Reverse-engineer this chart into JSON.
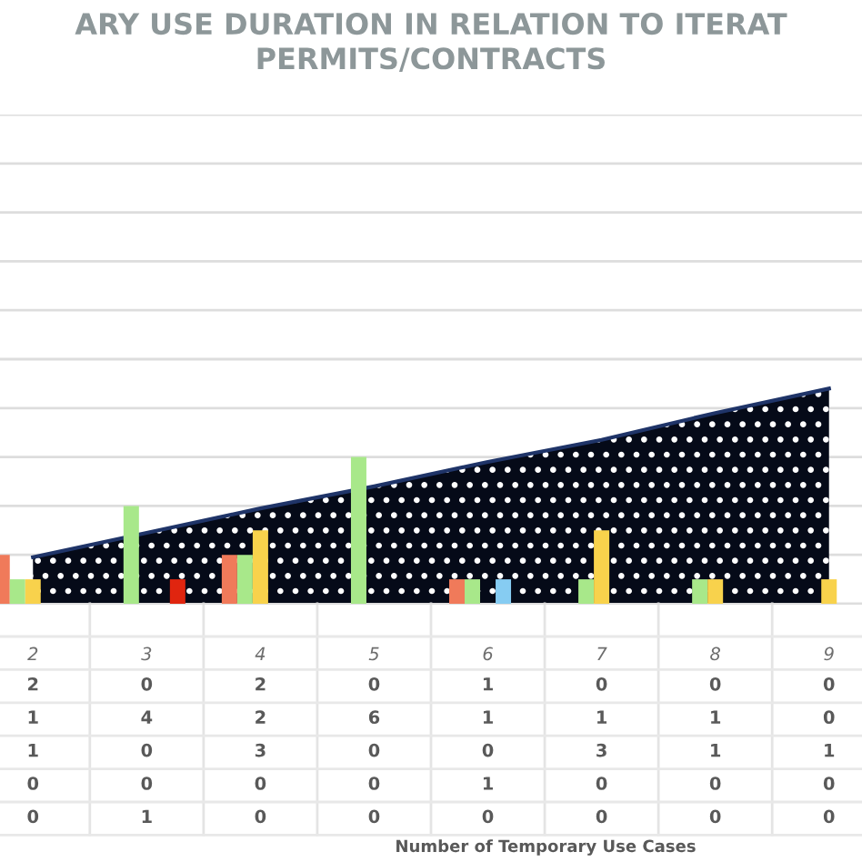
{
  "chart_data": {
    "type": "bar",
    "title": "ARY USE DURATION IN RELATION TO ITERAT\nPERMITS/CONTRACTS",
    "annotations": [
      "Number of Temporary Use Cases"
    ],
    "categories": [
      "2",
      "3",
      "4",
      "5",
      "6",
      "7",
      "8",
      "9"
    ],
    "series": [
      {
        "color": "#f07a5a",
        "values": [
          2,
          0,
          2,
          0,
          1,
          0,
          0,
          0
        ],
        "value_labels": [
          "2",
          "0",
          "2",
          "0",
          "1",
          "0",
          "0",
          "0"
        ]
      },
      {
        "color": "#a8e88a",
        "values": [
          1,
          4,
          2,
          6,
          1,
          1,
          1,
          0
        ],
        "value_labels": [
          "1",
          "4",
          "2",
          "6",
          "1",
          "1",
          "1",
          "0"
        ]
      },
      {
        "color": "#f8d24c",
        "values": [
          1,
          0,
          3,
          0,
          0,
          3,
          1,
          1
        ],
        "value_labels": [
          "1",
          "0",
          "3",
          "0",
          "0",
          "3",
          "1",
          "1"
        ]
      },
      {
        "color": "#86ccf2",
        "values": [
          0,
          0,
          0,
          0,
          1,
          0,
          0,
          0
        ],
        "value_labels": [
          "0",
          "0",
          "0",
          "0",
          "1",
          "0",
          "0",
          "0"
        ]
      },
      {
        "color": "#e0250f",
        "values": [
          0,
          1,
          0,
          0,
          0,
          0,
          0,
          0
        ],
        "value_labels": [
          "0",
          "1",
          "0",
          "0",
          "0",
          "0",
          "0",
          "0"
        ]
      },
      {
        "type": "area",
        "color": "#050a18",
        "values": [
          1.9,
          2.9,
          3.9,
          4.8,
          5.8,
          6.7,
          7.8,
          8.8
        ]
      }
    ],
    "ylim": [
      0,
      20
    ],
    "yticks": [
      {
        "value": 0,
        "label": null
      },
      {
        "value": 2,
        "label": null
      },
      {
        "value": 4,
        "label": null
      },
      {
        "value": 6,
        "label": null
      },
      {
        "value": 8,
        "label": null
      },
      {
        "value": 10,
        "label": null
      },
      {
        "value": 12,
        "label": null
      },
      {
        "value": 14,
        "label": null
      },
      {
        "value": 16,
        "label": null
      },
      {
        "value": 18,
        "label": null
      },
      {
        "value": 20,
        "label": null
      }
    ],
    "grid": "y",
    "tick_labels": "x"
  }
}
